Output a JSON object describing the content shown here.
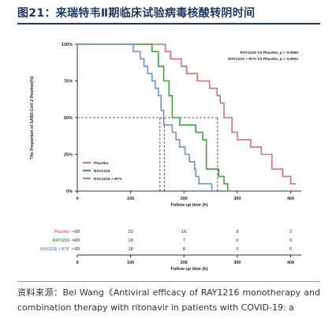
{
  "figure_title": "图21：来瑞特韦Ⅱ期临床试验病毒核酸转阴时间",
  "source_text": "资料来源：Bei Wang《Antiviral efficacy of RAY1216 monotherapy and combination therapy with ritonavir in patients with COVID-19: a",
  "colors": {
    "title": "#1f3864",
    "placebo": "#e26d6d",
    "ray1216": "#3aa53a",
    "ray1216_rtv": "#6b94dd",
    "axis": "#333333"
  },
  "chart_data": {
    "type": "line",
    "step": true,
    "title": "",
    "xlabel": "Follow up time (h)",
    "ylabel": "The Proportion of SARS-CoV-2 Positive(%)",
    "xlim": [
      0,
      420
    ],
    "ylim": [
      0,
      1
    ],
    "x_ticks": [
      0,
      100,
      200,
      300,
      400
    ],
    "y_ticks": [
      {
        "value": 0,
        "label": "0%"
      },
      {
        "value": 0.25,
        "label": "25%"
      },
      {
        "value": 0.5,
        "label": "50%"
      },
      {
        "value": 0.75,
        "label": "75%"
      },
      {
        "value": 1,
        "label": "100%"
      }
    ],
    "annotations": [
      "RAY1216 VS Placebo, p = 0.0060",
      "RAY1216 + RTV VS Placebo, p = 0.0001"
    ],
    "median_reference": {
      "y": 0.5,
      "x": [
        155,
        163,
        263
      ]
    },
    "legend": {
      "placement": "bottom-left"
    },
    "series": [
      {
        "name": "Placebo",
        "color": "#e26d6d",
        "x": [
          0,
          165,
          175,
          195,
          205,
          225,
          248,
          262,
          268,
          275,
          290,
          300,
          325,
          345,
          365,
          385,
          400,
          410
        ],
        "y": [
          1.0,
          0.95,
          0.9,
          0.85,
          0.8,
          0.75,
          0.7,
          0.65,
          0.6,
          0.5,
          0.4,
          0.35,
          0.3,
          0.25,
          0.15,
          0.1,
          0.05,
          0.05
        ]
      },
      {
        "name": "RAY1216",
        "color": "#3aa53a",
        "x": [
          0,
          140,
          152,
          162,
          172,
          178,
          192,
          222,
          235,
          242,
          265,
          275,
          282,
          282
        ],
        "y": [
          1.0,
          0.95,
          0.85,
          0.75,
          0.65,
          0.5,
          0.45,
          0.4,
          0.35,
          0.15,
          0.1,
          0.05,
          0.05,
          0.0
        ]
      },
      {
        "name": "RAY1216 + RTV",
        "color": "#6b94dd",
        "x": [
          0,
          105,
          118,
          125,
          132,
          140,
          146,
          152,
          157,
          162,
          178,
          185,
          192,
          202,
          210,
          220,
          222,
          228,
          240,
          252,
          252
        ],
        "y": [
          1.0,
          0.95,
          0.9,
          0.85,
          0.8,
          0.75,
          0.7,
          0.65,
          0.55,
          0.45,
          0.4,
          0.35,
          0.3,
          0.25,
          0.2,
          0.15,
          0.1,
          0.05,
          0.05,
          0.05,
          0.0
        ]
      }
    ],
    "risk_table": {
      "x_ticks": [
        0,
        100,
        200,
        300,
        400
      ],
      "rows": [
        {
          "label": "Placebo",
          "color": "#e26d6d",
          "values": [
            "20",
            "20",
            "16",
            "8",
            "2"
          ]
        },
        {
          "label": "RAY1216",
          "color": "#3aa53a",
          "values": [
            "20",
            "19",
            "7",
            "0",
            "0"
          ]
        },
        {
          "label": "RAY1216 + RTV",
          "color": "#6b94dd",
          "values": [
            "20",
            "18",
            "8",
            "0",
            "0"
          ]
        }
      ]
    }
  }
}
